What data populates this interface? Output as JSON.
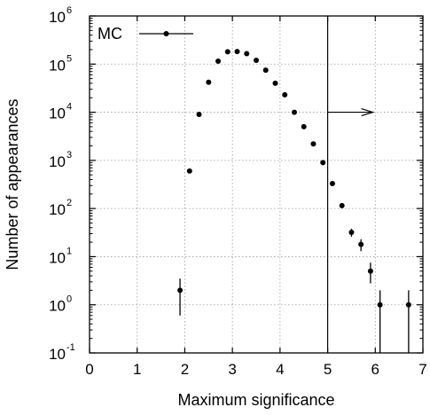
{
  "chart_data": {
    "type": "scatter",
    "xlabel": "Maximum significance",
    "ylabel": "Number of appearances",
    "xlim": [
      0,
      7
    ],
    "ylim_exponent": [
      -1,
      6
    ],
    "y_scale": "log",
    "x_ticks": [
      "0",
      "1",
      "2",
      "3",
      "4",
      "5",
      "6",
      "7"
    ],
    "y_tick_exponents": [
      "-1",
      "0",
      "1",
      "2",
      "3",
      "4",
      "5",
      "6"
    ],
    "y_tick_base": "10",
    "grid": true,
    "legend_position": "top-left",
    "series": [
      {
        "name": "MC",
        "points": [
          {
            "x": 1.9,
            "y": 2,
            "ylo": 0.6,
            "yhi": 3.5
          },
          {
            "x": 2.1,
            "y": 600
          },
          {
            "x": 2.3,
            "y": 9000
          },
          {
            "x": 2.5,
            "y": 42000
          },
          {
            "x": 2.7,
            "y": 115000
          },
          {
            "x": 2.9,
            "y": 180000
          },
          {
            "x": 3.1,
            "y": 182000
          },
          {
            "x": 3.3,
            "y": 165000
          },
          {
            "x": 3.5,
            "y": 120000
          },
          {
            "x": 3.7,
            "y": 75000
          },
          {
            "x": 3.9,
            "y": 40000
          },
          {
            "x": 4.1,
            "y": 23000
          },
          {
            "x": 4.3,
            "y": 10000
          },
          {
            "x": 4.5,
            "y": 5000
          },
          {
            "x": 4.7,
            "y": 2200
          },
          {
            "x": 4.9,
            "y": 900
          },
          {
            "x": 5.1,
            "y": 330
          },
          {
            "x": 5.3,
            "y": 115
          },
          {
            "x": 5.5,
            "y": 32,
            "ylo": 26,
            "yhi": 38
          },
          {
            "x": 5.7,
            "y": 18,
            "ylo": 13,
            "yhi": 23
          },
          {
            "x": 5.9,
            "y": 5,
            "ylo": 2.8,
            "yhi": 7.5
          },
          {
            "x": 6.1,
            "y": 1,
            "ylo": 0.1,
            "yhi": 2
          },
          {
            "x": 6.7,
            "y": 1,
            "ylo": 0.1,
            "yhi": 2
          }
        ]
      }
    ],
    "threshold": {
      "x": 5,
      "arrow_to_x": 5.95,
      "arrow_y": 10000
    }
  }
}
